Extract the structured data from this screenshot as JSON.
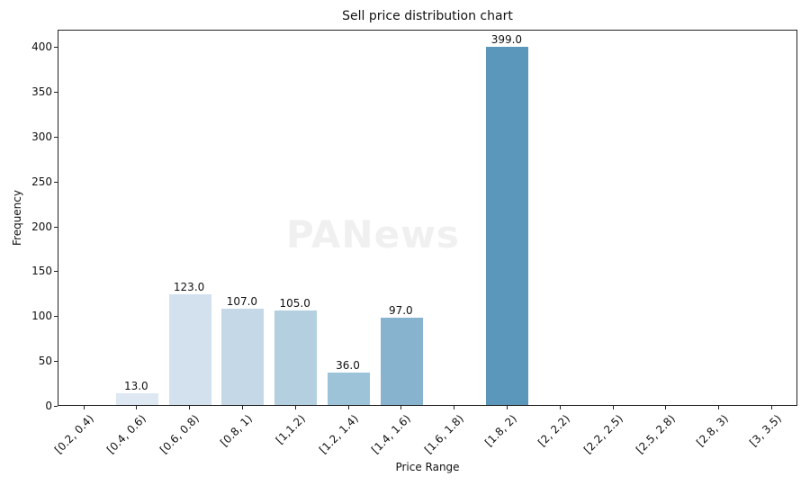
{
  "chart_data": {
    "type": "bar",
    "title": "Sell price distribution chart",
    "xlabel": "Price Range",
    "ylabel": "Frequency",
    "categories": [
      "[0.2, 0.4)",
      "[0.4, 0.6)",
      "[0.6, 0.8)",
      "[0.8, 1)",
      "[1,1.2)",
      "[1.2, 1.4)",
      "[1.4, 1.6)",
      "[1.6, 1.8)",
      "[1.8, 2)",
      "[2, 2.2)",
      "[2.2, 2.5)",
      "[2.5, 2.8)",
      "[2.8, 3)",
      "[3, 3.5)"
    ],
    "values": [
      0,
      13,
      123,
      107,
      105,
      36,
      97,
      0,
      399,
      0,
      0,
      0,
      0,
      0
    ],
    "value_labels": [
      "",
      "13.0",
      "123.0",
      "107.0",
      "105.0",
      "36.0",
      "97.0",
      "",
      "399.0",
      "",
      "",
      "",
      "",
      ""
    ],
    "colors": [
      "#eaf1f8",
      "#dde8f3",
      "#d3e1ee",
      "#c5d8e7",
      "#b3cfe0",
      "#9dc3d8",
      "#87b3cf",
      "#76a8c8",
      "#5b96bb",
      "#4d89b0",
      "#4080a8",
      "#3a78a1",
      "#346f99",
      "#2e6690"
    ],
    "yticks": [
      0,
      50,
      100,
      150,
      200,
      250,
      300,
      350,
      400
    ],
    "ylim": [
      0,
      419
    ],
    "grid": false,
    "legend": null
  },
  "watermark": "PANews"
}
